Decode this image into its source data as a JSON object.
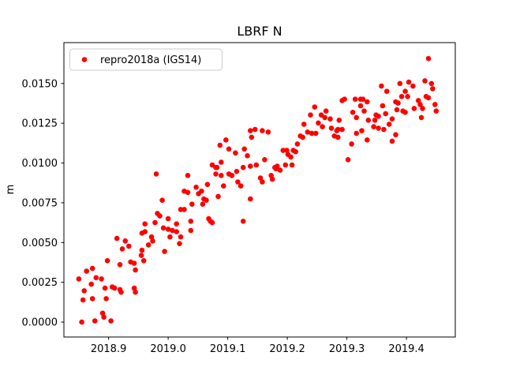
{
  "figure": {
    "title": "LBRF N",
    "ylabel": "m",
    "xlabel": ""
  },
  "legend": {
    "entries": [
      {
        "label": "repro2018a (IGS14)",
        "marker": "dot",
        "color": "#ff0000"
      }
    ],
    "position": "upper-left"
  },
  "chart_data": {
    "type": "scatter",
    "title": "LBRF N",
    "xlabel": "",
    "ylabel": "m",
    "grid": false,
    "legend_position": "upper left",
    "xlim": [
      2018.825,
      2019.482
    ],
    "ylim": [
      -0.00094,
      0.01757
    ],
    "xticks": [
      {
        "value": 2018.9,
        "label": "2018.9"
      },
      {
        "value": 2019.0,
        "label": "2019.0"
      },
      {
        "value": 2019.1,
        "label": "2019.1"
      },
      {
        "value": 2019.2,
        "label": "2019.2"
      },
      {
        "value": 2019.3,
        "label": "2019.3"
      },
      {
        "value": 2019.4,
        "label": "2019.4"
      }
    ],
    "yticks": [
      {
        "value": 0.0,
        "label": "0.0000"
      },
      {
        "value": 0.0025,
        "label": "0.0025"
      },
      {
        "value": 0.005,
        "label": "0.0050"
      },
      {
        "value": 0.0075,
        "label": "0.0075"
      },
      {
        "value": 0.01,
        "label": "0.0100"
      },
      {
        "value": 0.0125,
        "label": "0.0125"
      },
      {
        "value": 0.015,
        "label": "0.0150"
      }
    ],
    "series": [
      {
        "name": "repro2018a (IGS14)",
        "color": "#ff0000",
        "marker_radius": 3.3,
        "points": [
          [
            2018.914,
            0.00526
          ],
          [
            2018.928,
            0.0051
          ],
          [
            2018.934,
            0.00477
          ],
          [
            2018.923,
            0.0046
          ],
          [
            2018.956,
            0.00559
          ],
          [
            2018.955,
            0.00419
          ],
          [
            2018.937,
            0.00378
          ],
          [
            2018.943,
            0.0037
          ],
          [
            2018.945,
            0.00328
          ],
          [
            2018.898,
            0.00386
          ],
          [
            2018.919,
            0.00361
          ],
          [
            2018.873,
            0.00337
          ],
          [
            2018.863,
            0.0032
          ],
          [
            2018.879,
            0.00279
          ],
          [
            2018.85,
            0.00271
          ],
          [
            2018.888,
            0.00271
          ],
          [
            2018.871,
            0.00238
          ],
          [
            2018.894,
            0.00213
          ],
          [
            2018.906,
            0.00221
          ],
          [
            2018.91,
            0.00213
          ],
          [
            2018.919,
            0.00204
          ],
          [
            2018.859,
            0.00197
          ],
          [
            2018.921,
            0.00188
          ],
          [
            2018.943,
            0.00213
          ],
          [
            2018.945,
            0.00188
          ],
          [
            2018.857,
            0.00139
          ],
          [
            2018.873,
            0.00147
          ],
          [
            2018.896,
            0.00147
          ],
          [
            2018.89,
            0.00056
          ],
          [
            2018.892,
            0.00031
          ],
          [
            2018.855,
            0.0
          ],
          [
            2018.877,
            7e-05
          ],
          [
            2018.904,
            7e-05
          ],
          [
            2018.98,
            0.00931
          ],
          [
            2019.033,
            0.00922
          ],
          [
            2019.047,
            0.00848
          ],
          [
            2019.056,
            0.00823
          ],
          [
            2019.066,
            0.00865
          ],
          [
            2019.027,
            0.00823
          ],
          [
            2019.033,
            0.00815
          ],
          [
            2019.051,
            0.00807
          ],
          [
            2019.06,
            0.00774
          ],
          [
            2019.064,
            0.00766
          ],
          [
            2019.058,
            0.00741
          ],
          [
            2018.99,
            0.00766
          ],
          [
            2019.04,
            0.00741
          ],
          [
            2019.021,
            0.00708
          ],
          [
            2019.027,
            0.00708
          ],
          [
            2018.982,
            0.00683
          ],
          [
            2018.986,
            0.00667
          ],
          [
            2019.0,
            0.0065
          ],
          [
            2018.978,
            0.00625
          ],
          [
            2018.961,
            0.00617
          ],
          [
            2019.014,
            0.00617
          ],
          [
            2019.038,
            0.00634
          ],
          [
            2019.071,
            0.00634
          ],
          [
            2018.992,
            0.00592
          ],
          [
            2019.0,
            0.00584
          ],
          [
            2019.007,
            0.00576
          ],
          [
            2019.014,
            0.00568
          ],
          [
            2019.038,
            0.00576
          ],
          [
            2018.961,
            0.00568
          ],
          [
            2019.003,
            0.00535
          ],
          [
            2018.972,
            0.00535
          ],
          [
            2018.974,
            0.0051
          ],
          [
            2019.021,
            0.00535
          ],
          [
            2018.967,
            0.00485
          ],
          [
            2019.019,
            0.00493
          ],
          [
            2018.994,
            0.00444
          ],
          [
            2018.956,
            0.00452
          ],
          [
            2018.959,
            0.00386
          ],
          [
            2019.082,
            0.00972
          ],
          [
            2019.08,
            0.00931
          ],
          [
            2019.138,
            0.01203
          ],
          [
            2019.146,
            0.01211
          ],
          [
            2019.158,
            0.01203
          ],
          [
            2019.168,
            0.01195
          ],
          [
            2019.14,
            0.01162
          ],
          [
            2019.097,
            0.01145
          ],
          [
            2019.087,
            0.01112
          ],
          [
            2019.102,
            0.01088
          ],
          [
            2019.113,
            0.01063
          ],
          [
            2019.128,
            0.01088
          ],
          [
            2019.133,
            0.01046
          ],
          [
            2019.089,
            0.01005
          ],
          [
            2019.074,
            0.00988
          ],
          [
            2019.08,
            0.00972
          ],
          [
            2019.126,
            0.00972
          ],
          [
            2019.138,
            0.0098
          ],
          [
            2019.148,
            0.00988
          ],
          [
            2019.162,
            0.01021
          ],
          [
            2019.179,
            0.00972
          ],
          [
            2019.183,
            0.0098
          ],
          [
            2019.089,
            0.00922
          ],
          [
            2019.102,
            0.00931
          ],
          [
            2019.107,
            0.00922
          ],
          [
            2019.115,
            0.00947
          ],
          [
            2019.155,
            0.00906
          ],
          [
            2019.173,
            0.00922
          ],
          [
            2019.175,
            0.00898
          ],
          [
            2019.093,
            0.00856
          ],
          [
            2019.117,
            0.00881
          ],
          [
            2019.122,
            0.00856
          ],
          [
            2019.084,
            0.0079
          ],
          [
            2019.138,
            0.00774
          ],
          [
            2019.068,
            0.0065
          ],
          [
            2019.074,
            0.00625
          ],
          [
            2019.126,
            0.00634
          ],
          [
            2019.158,
            0.00881
          ],
          [
            2019.292,
            0.01393
          ],
          [
            2019.246,
            0.01352
          ],
          [
            2019.239,
            0.01302
          ],
          [
            2019.257,
            0.01302
          ],
          [
            2019.265,
            0.01327
          ],
          [
            2019.263,
            0.01286
          ],
          [
            2019.272,
            0.01277
          ],
          [
            2019.287,
            0.01269
          ],
          [
            2019.228,
            0.01244
          ],
          [
            2019.252,
            0.01252
          ],
          [
            2019.259,
            0.01228
          ],
          [
            2019.274,
            0.01219
          ],
          [
            2019.283,
            0.01203
          ],
          [
            2019.292,
            0.01211
          ],
          [
            2019.279,
            0.0117
          ],
          [
            2019.285,
            0.01162
          ],
          [
            2019.234,
            0.01195
          ],
          [
            2019.241,
            0.01187
          ],
          [
            2019.248,
            0.01187
          ],
          [
            2019.222,
            0.0117
          ],
          [
            2019.226,
            0.01162
          ],
          [
            2019.217,
            0.0112
          ],
          [
            2019.21,
            0.01079
          ],
          [
            2019.214,
            0.01071
          ],
          [
            2019.199,
            0.01079
          ],
          [
            2019.201,
            0.01054
          ],
          [
            2019.193,
            0.01079
          ],
          [
            2019.206,
            0.01038
          ],
          [
            2019.197,
            0.00988
          ],
          [
            2019.208,
            0.00988
          ],
          [
            2019.181,
            0.00964
          ],
          [
            2019.188,
            0.00955
          ],
          [
            2019.358,
            0.01484
          ],
          [
            2019.389,
            0.015
          ],
          [
            2019.398,
            0.01451
          ],
          [
            2019.367,
            0.01451
          ],
          [
            2019.392,
            0.01418
          ],
          [
            2019.296,
            0.01401
          ],
          [
            2019.314,
            0.01401
          ],
          [
            2019.323,
            0.01401
          ],
          [
            2019.327,
            0.01401
          ],
          [
            2019.334,
            0.01385
          ],
          [
            2019.323,
            0.0136
          ],
          [
            2019.36,
            0.0136
          ],
          [
            2019.386,
            0.01377
          ],
          [
            2019.384,
            0.01335
          ],
          [
            2019.394,
            0.01327
          ],
          [
            2019.31,
            0.01319
          ],
          [
            2019.329,
            0.01327
          ],
          [
            2019.349,
            0.01302
          ],
          [
            2019.353,
            0.01294
          ],
          [
            2019.365,
            0.0131
          ],
          [
            2019.316,
            0.01286
          ],
          [
            2019.336,
            0.01269
          ],
          [
            2019.347,
            0.01269
          ],
          [
            2019.376,
            0.01277
          ],
          [
            2019.371,
            0.01244
          ],
          [
            2019.285,
            0.01211
          ],
          [
            2019.345,
            0.01228
          ],
          [
            2019.353,
            0.01219
          ],
          [
            2019.362,
            0.01211
          ],
          [
            2019.316,
            0.01187
          ],
          [
            2019.325,
            0.01203
          ],
          [
            2019.382,
            0.01178
          ],
          [
            2019.334,
            0.01145
          ],
          [
            2019.376,
            0.01137
          ],
          [
            2019.308,
            0.0112
          ],
          [
            2019.302,
            0.01021
          ],
          [
            2019.437,
            0.01657
          ],
          [
            2019.431,
            0.01517
          ],
          [
            2019.404,
            0.01509
          ],
          [
            2019.411,
            0.01484
          ],
          [
            2019.442,
            0.015
          ],
          [
            2019.444,
            0.01467
          ],
          [
            2019.402,
            0.01418
          ],
          [
            2019.433,
            0.01418
          ],
          [
            2019.437,
            0.0141
          ],
          [
            2019.382,
            0.01385
          ],
          [
            2019.42,
            0.01393
          ],
          [
            2019.423,
            0.01368
          ],
          [
            2019.398,
            0.01319
          ],
          [
            2019.413,
            0.01343
          ],
          [
            2019.427,
            0.01343
          ],
          [
            2019.448,
            0.01368
          ],
          [
            2019.45,
            0.01327
          ],
          [
            2019.425,
            0.01286
          ]
        ]
      }
    ]
  }
}
